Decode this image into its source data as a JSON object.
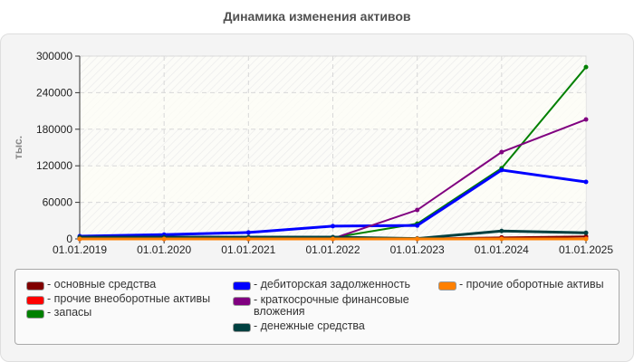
{
  "title": "Динамика изменения активов",
  "chart_data": {
    "type": "line",
    "title": "Динамика изменения активов",
    "xlabel": "",
    "ylabel": "тыс.",
    "ylim": [
      0,
      300000
    ],
    "yticks": [
      "0",
      "60000",
      "120000",
      "180000",
      "240000",
      "300000"
    ],
    "categories": [
      "01.01.2019",
      "01.01.2020",
      "01.01.2021",
      "01.01.2022",
      "01.01.2023",
      "01.01.2024",
      "01.01.2025"
    ],
    "grid": true,
    "legend_position": "bottom",
    "series": [
      {
        "name": "основные средства",
        "color": "#800000",
        "values": [
          500,
          500,
          500,
          500,
          500,
          2500,
          4000
        ]
      },
      {
        "name": "прочие внеоборотные активы",
        "color": "#ff0000",
        "values": [
          0,
          0,
          0,
          0,
          0,
          500,
          500
        ]
      },
      {
        "name": "запасы",
        "color": "#008000",
        "values": [
          1000,
          1000,
          1000,
          2000,
          25000,
          116000,
          282000
        ]
      },
      {
        "name": "дебиторская задолженность",
        "color": "#0000ff",
        "values": [
          4500,
          7000,
          10500,
          21000,
          22000,
          113000,
          93500
        ]
      },
      {
        "name": "краткосрочные финансовые вложения",
        "color": "#800080",
        "values": [
          0,
          0,
          0,
          500,
          47500,
          142500,
          196000
        ]
      },
      {
        "name": "денежные средства",
        "color": "#004040",
        "values": [
          3000,
          3000,
          3000,
          3000,
          500,
          13000,
          10000
        ]
      },
      {
        "name": "прочие оборотные активы",
        "color": "#ff8000",
        "values": [
          0,
          0,
          0,
          0,
          0,
          0,
          0
        ]
      }
    ]
  },
  "legend": [
    {
      "label": "- основные средства",
      "color": "#800000"
    },
    {
      "label": "- прочие внеоборотные активы",
      "color": "#ff0000"
    },
    {
      "label": "- запасы",
      "color": "#008000"
    },
    {
      "label": "- дебиторская задолженность",
      "color": "#0000ff"
    },
    {
      "label": "- краткосрочные финансовые\nвложения",
      "color": "#800080"
    },
    {
      "label": "- денежные средства",
      "color": "#004040"
    },
    {
      "label": "- прочие оборотные активы",
      "color": "#ff8000"
    }
  ]
}
